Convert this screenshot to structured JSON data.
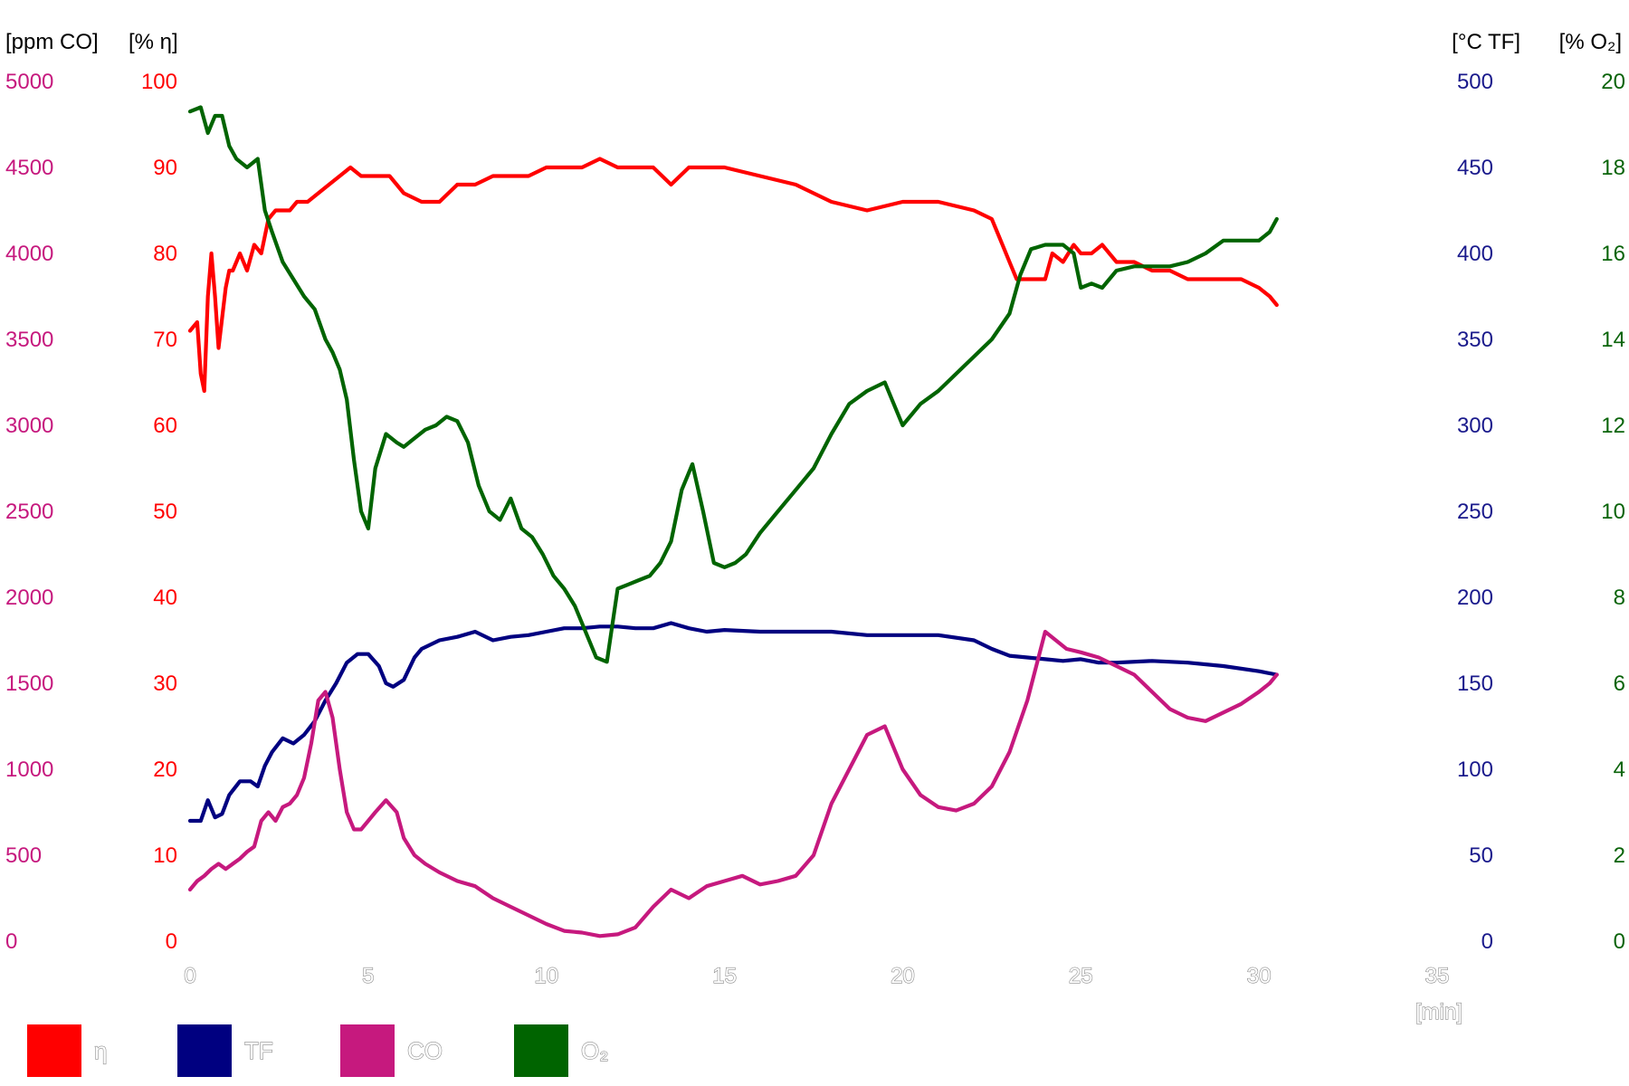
{
  "chart_data": {
    "type": "line",
    "xlabel": "[min]",
    "xlim": [
      0,
      35
    ],
    "xticks": [
      "0",
      "5",
      "10",
      "15",
      "20",
      "25",
      "30",
      "35"
    ],
    "axes": {
      "co": {
        "unit": "[ppm CO]",
        "ticks": [
          "5000",
          "4500",
          "4000",
          "3500",
          "3000",
          "2500",
          "2000",
          "1500",
          "1000",
          "500",
          "0"
        ],
        "ylim": [
          0,
          5000
        ],
        "color": "#c6197e"
      },
      "eta": {
        "unit": "[% η]",
        "ticks": [
          "100",
          "90",
          "80",
          "70",
          "60",
          "50",
          "40",
          "30",
          "20",
          "10",
          "0"
        ],
        "ylim": [
          0,
          100
        ],
        "color": "#ff0000"
      },
      "tf": {
        "unit": "[°C TF]",
        "ticks": [
          "500",
          "450",
          "400",
          "350",
          "300",
          "250",
          "200",
          "150",
          "100",
          "50",
          "0"
        ],
        "ylim": [
          0,
          500
        ],
        "color": "#1a1a8c"
      },
      "o2": {
        "unit": "[% O₂]",
        "ticks": [
          "20",
          "18",
          "16",
          "14",
          "12",
          "10",
          "8",
          "6",
          "4",
          "2",
          "0"
        ],
        "ylim": [
          0,
          20
        ],
        "color": "#0a640a"
      }
    },
    "legend": [
      {
        "key": "eta",
        "label": "η",
        "color": "#ff0000"
      },
      {
        "key": "tf",
        "label": "TF",
        "color": "#000080"
      },
      {
        "key": "co",
        "label": "CO",
        "color": "#c6197e"
      },
      {
        "key": "o2",
        "label": "O₂",
        "color": "#006400"
      }
    ],
    "series": [
      {
        "key": "eta",
        "axis": "eta",
        "color": "#ff0000",
        "x": [
          0.0,
          0.2,
          0.3,
          0.4,
          0.5,
          0.6,
          0.7,
          0.8,
          1.0,
          1.1,
          1.2,
          1.3,
          1.4,
          1.6,
          1.8,
          2.0,
          2.2,
          2.4,
          2.6,
          2.8,
          3.0,
          3.3,
          3.6,
          3.9,
          4.2,
          4.5,
          4.8,
          5.0,
          5.3,
          5.6,
          6.0,
          6.5,
          7.0,
          7.5,
          8.0,
          8.5,
          9.0,
          9.5,
          10.0,
          10.5,
          11.0,
          11.5,
          12.0,
          12.5,
          13.0,
          13.5,
          14.0,
          14.5,
          15.0,
          16.0,
          17.0,
          18.0,
          19.0,
          20.0,
          21.0,
          22.0,
          22.5,
          22.8,
          23.0,
          23.2,
          23.5,
          24.0,
          24.2,
          24.5,
          24.8,
          25.0,
          25.3,
          25.6,
          26.0,
          26.5,
          27.0,
          27.5,
          28.0,
          28.5,
          29.0,
          29.5,
          30.0,
          30.3,
          30.5
        ],
        "y": [
          71,
          72,
          66,
          64,
          75,
          80,
          75,
          69,
          76,
          78,
          78,
          79,
          80,
          78,
          81,
          80,
          84,
          85,
          85,
          85,
          86,
          86,
          87,
          88,
          89,
          90,
          89,
          89,
          89,
          89,
          87,
          86,
          86,
          88,
          88,
          89,
          89,
          89,
          90,
          90,
          90,
          91,
          90,
          90,
          90,
          88,
          90,
          90,
          90,
          89,
          88,
          86,
          85,
          86,
          86,
          85,
          84,
          81,
          79,
          77,
          77,
          77,
          80,
          79,
          81,
          80,
          80,
          81,
          79,
          79,
          78,
          78,
          77,
          77,
          77,
          77,
          76,
          75,
          74
        ]
      },
      {
        "key": "tf",
        "axis": "tf",
        "color": "#000080",
        "x": [
          0.0,
          0.3,
          0.5,
          0.7,
          0.9,
          1.1,
          1.4,
          1.7,
          1.9,
          2.1,
          2.3,
          2.6,
          2.9,
          3.2,
          3.5,
          3.8,
          4.1,
          4.4,
          4.7,
          5.0,
          5.3,
          5.5,
          5.7,
          6.0,
          6.3,
          6.5,
          7.0,
          7.5,
          8.0,
          8.5,
          9.0,
          9.5,
          10.0,
          10.5,
          11.0,
          11.5,
          12.0,
          12.5,
          13.0,
          13.5,
          14.0,
          14.5,
          15.0,
          16.0,
          17.0,
          18.0,
          19.0,
          20.0,
          21.0,
          22.0,
          22.5,
          23.0,
          23.5,
          24.0,
          24.5,
          25.0,
          25.5,
          26.0,
          27.0,
          28.0,
          29.0,
          30.0,
          30.5
        ],
        "y": [
          70,
          70,
          82,
          72,
          74,
          85,
          93,
          93,
          90,
          102,
          110,
          118,
          115,
          120,
          128,
          140,
          150,
          162,
          167,
          167,
          160,
          150,
          148,
          152,
          165,
          170,
          175,
          177,
          180,
          175,
          177,
          178,
          180,
          182,
          182,
          183,
          183,
          182,
          182,
          185,
          182,
          180,
          181,
          180,
          180,
          180,
          178,
          178,
          178,
          175,
          170,
          166,
          165,
          164,
          163,
          164,
          162,
          162,
          163,
          162,
          160,
          157,
          155
        ]
      },
      {
        "key": "co",
        "axis": "co",
        "color": "#c6197e",
        "x": [
          0.0,
          0.2,
          0.4,
          0.6,
          0.8,
          1.0,
          1.2,
          1.4,
          1.6,
          1.8,
          2.0,
          2.2,
          2.4,
          2.6,
          2.8,
          3.0,
          3.2,
          3.4,
          3.6,
          3.8,
          4.0,
          4.2,
          4.4,
          4.6,
          4.8,
          5.0,
          5.2,
          5.5,
          5.8,
          6.0,
          6.3,
          6.6,
          7.0,
          7.5,
          8.0,
          8.5,
          9.0,
          9.5,
          10.0,
          10.5,
          11.0,
          11.5,
          12.0,
          12.5,
          13.0,
          13.5,
          14.0,
          14.5,
          15.0,
          15.5,
          16.0,
          16.5,
          17.0,
          17.5,
          18.0,
          18.5,
          19.0,
          19.5,
          20.0,
          20.5,
          21.0,
          21.5,
          22.0,
          22.5,
          23.0,
          23.5,
          24.0,
          24.3,
          24.6,
          25.0,
          25.5,
          26.0,
          26.5,
          27.0,
          27.5,
          28.0,
          28.5,
          29.0,
          29.5,
          30.0,
          30.3,
          30.5
        ],
        "y": [
          300,
          350,
          380,
          420,
          450,
          420,
          450,
          480,
          520,
          550,
          700,
          750,
          700,
          780,
          800,
          850,
          950,
          1150,
          1400,
          1450,
          1300,
          1000,
          750,
          650,
          650,
          700,
          750,
          820,
          750,
          600,
          500,
          450,
          400,
          350,
          320,
          250,
          200,
          150,
          100,
          60,
          50,
          30,
          40,
          80,
          200,
          300,
          250,
          320,
          350,
          380,
          330,
          350,
          380,
          500,
          800,
          1000,
          1200,
          1250,
          1000,
          850,
          780,
          760,
          800,
          900,
          1100,
          1400,
          1800,
          1750,
          1700,
          1680,
          1650,
          1600,
          1550,
          1450,
          1350,
          1300,
          1280,
          1330,
          1380,
          1450,
          1500,
          1550
        ]
      },
      {
        "key": "o2",
        "axis": "o2",
        "color": "#006400",
        "x": [
          0.0,
          0.3,
          0.5,
          0.7,
          0.9,
          1.1,
          1.3,
          1.6,
          1.9,
          2.1,
          2.3,
          2.6,
          2.9,
          3.2,
          3.5,
          3.8,
          4.0,
          4.2,
          4.4,
          4.6,
          4.8,
          5.0,
          5.2,
          5.5,
          5.8,
          6.0,
          6.3,
          6.6,
          6.9,
          7.2,
          7.5,
          7.8,
          8.1,
          8.4,
          8.7,
          9.0,
          9.3,
          9.6,
          9.9,
          10.2,
          10.5,
          10.8,
          11.1,
          11.4,
          11.7,
          12.0,
          12.3,
          12.6,
          12.9,
          13.2,
          13.5,
          13.8,
          14.1,
          14.4,
          14.7,
          15.0,
          15.3,
          15.6,
          16.0,
          16.5,
          17.0,
          17.5,
          18.0,
          18.5,
          19.0,
          19.5,
          20.0,
          20.5,
          21.0,
          21.5,
          22.0,
          22.5,
          23.0,
          23.3,
          23.6,
          24.0,
          24.2,
          24.5,
          24.8,
          25.0,
          25.3,
          25.6,
          26.0,
          26.5,
          27.0,
          27.5,
          28.0,
          28.5,
          29.0,
          29.5,
          30.0,
          30.3,
          30.5
        ],
        "y": [
          19.3,
          19.4,
          18.8,
          19.2,
          19.2,
          18.5,
          18.2,
          18.0,
          18.2,
          17.0,
          16.5,
          15.8,
          15.4,
          15.0,
          14.7,
          14.0,
          13.7,
          13.3,
          12.6,
          11.2,
          10.0,
          9.6,
          11.0,
          11.8,
          11.6,
          11.5,
          11.7,
          11.9,
          12.0,
          12.2,
          12.1,
          11.6,
          10.6,
          10.0,
          9.8,
          10.3,
          9.6,
          9.4,
          9.0,
          8.5,
          8.2,
          7.8,
          7.2,
          6.6,
          6.5,
          8.2,
          8.3,
          8.4,
          8.5,
          8.8,
          9.3,
          10.5,
          11.1,
          10.0,
          8.8,
          8.7,
          8.8,
          9.0,
          9.5,
          10.0,
          10.5,
          11.0,
          11.8,
          12.5,
          12.8,
          13.0,
          12.0,
          12.5,
          12.8,
          13.2,
          13.6,
          14.0,
          14.6,
          15.5,
          16.1,
          16.2,
          16.2,
          16.2,
          16.0,
          15.2,
          15.3,
          15.2,
          15.6,
          15.7,
          15.7,
          15.7,
          15.8,
          16.0,
          16.3,
          16.3,
          16.3,
          16.5,
          16.8
        ]
      }
    ]
  }
}
